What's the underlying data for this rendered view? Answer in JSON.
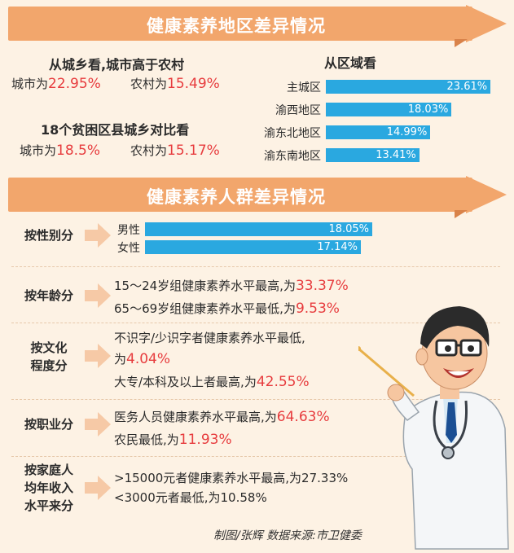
{
  "section1": {
    "title": "健康素养地区差异情况",
    "urban_rural": {
      "heading": "从城乡看,城市高于农村",
      "city_label": "城市为",
      "city_value": "22.95%",
      "rural_label": "农村为",
      "rural_value": "15.49%"
    },
    "poor_counties": {
      "heading": "18个贫困区县城乡对比看",
      "city_label": "城市为",
      "city_value": "18.5%",
      "rural_label": "农村为",
      "rural_value": "15.17%"
    },
    "region_heading": "从区域看"
  },
  "section2": {
    "title": "健康素养人群差异情况",
    "gender": {
      "category": "按性别分"
    },
    "age": {
      "category": "按年龄分",
      "line1_text": "15～24岁组健康素养水平最高,为",
      "line1_value": "33.37%",
      "line2_text": "65～69岁组健康素养水平最低,为",
      "line2_value": "9.53%"
    },
    "education": {
      "category_line1": "按文化",
      "category_line2": "程度分",
      "line1_text": "不识字/少识字者健康素养水平最低,",
      "line2_text": "为",
      "line2_value": "4.04%",
      "line3_text": "大专/本科及以上者最高,为",
      "line3_value": "42.55%"
    },
    "occupation": {
      "category": "按职业分",
      "line1_text": "医务人员健康素养水平最高,为",
      "line1_value": "64.63%",
      "line2_text": "农民最低,为",
      "line2_value": "11.93%"
    },
    "income": {
      "category_line1": "按家庭人",
      "category_line2": "均年收入",
      "category_line3": "水平来分",
      "line1": ">15000元者健康素养水平最高,为27.33%",
      "line2": "<3000元者最低,为10.58%"
    }
  },
  "credit": "制图/张辉    数据来源:市卫健委",
  "colors": {
    "bar": "#2aa8e0",
    "ribbon": "#f2a66c",
    "highlight": "#e73c3e",
    "background": "#fdf2e4"
  },
  "chart_data": [
    {
      "type": "bar",
      "orientation": "horizontal",
      "categories": [
        "主城区",
        "渝西地区",
        "渝东北地区",
        "渝东南地区"
      ],
      "values": [
        23.61,
        18.03,
        14.99,
        13.41
      ],
      "value_labels": [
        "23.61%",
        "18.03%",
        "14.99%",
        "13.41%"
      ],
      "title": "从区域看",
      "xlim": [
        0,
        25
      ]
    },
    {
      "type": "bar",
      "orientation": "horizontal",
      "categories": [
        "男性",
        "女性"
      ],
      "values": [
        18.05,
        17.14
      ],
      "value_labels": [
        "18.05%",
        "17.14%"
      ],
      "title": "按性别分",
      "xlim": [
        0,
        18.5
      ]
    }
  ]
}
